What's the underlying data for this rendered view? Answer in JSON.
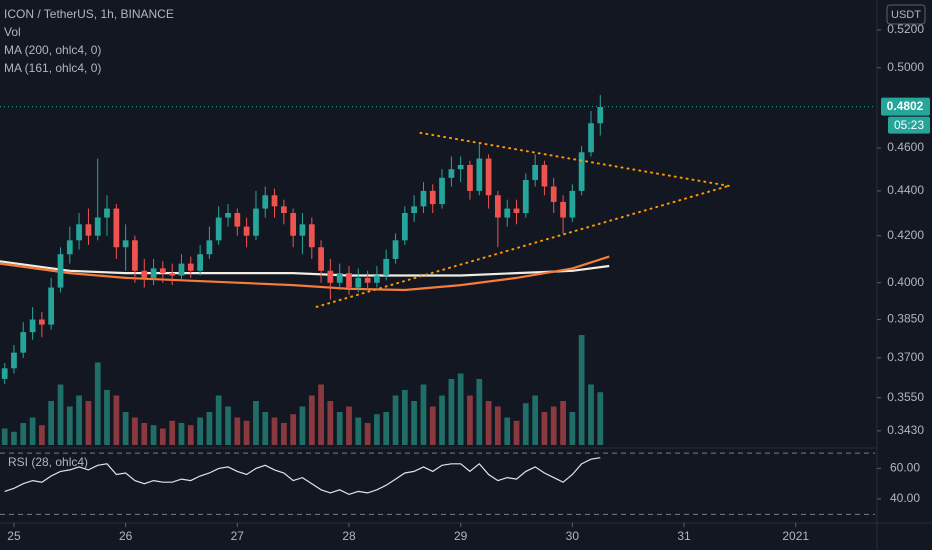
{
  "chart_data": {
    "type": "candlestick",
    "title": "ICON / TetherUS, 1h, BINANCE",
    "currency": "USDT",
    "log_scale": true,
    "grid": false,
    "up_color": "#26a69a",
    "down_color": "#ef5350",
    "xlim": [
      24.875,
      32.71
    ],
    "xticks": [
      25,
      26,
      27,
      28,
      29,
      30,
      31,
      {
        "value": 32,
        "label": "2021"
      }
    ],
    "ylim": [
      0.338,
      0.5364
    ],
    "yticks": [
      {
        "value": 0.52,
        "label": "0.5200"
      },
      {
        "value": 0.5,
        "label": "0.5000"
      },
      {
        "value": 0.46,
        "label": "0.4600"
      },
      {
        "value": 0.44,
        "label": "0.4400"
      },
      {
        "value": 0.42,
        "label": "0.4200"
      },
      {
        "value": 0.4,
        "label": "0.4000"
      },
      {
        "value": 0.385,
        "label": "0.3850"
      },
      {
        "value": 0.37,
        "label": "0.3700"
      },
      {
        "value": 0.355,
        "label": "0.3550"
      },
      {
        "value": 0.343,
        "label": "0.3430"
      }
    ],
    "last_price": {
      "value": 0.4802,
      "label": "0.4802"
    },
    "countdown": "05:23",
    "x": [
      24.917,
      25.0,
      25.083,
      25.167,
      25.25,
      25.333,
      25.417,
      25.5,
      25.583,
      25.667,
      25.75,
      25.833,
      25.917,
      26.0,
      26.083,
      26.167,
      26.25,
      26.333,
      26.417,
      26.5,
      26.583,
      26.667,
      26.75,
      26.833,
      26.917,
      27.0,
      27.083,
      27.167,
      27.25,
      27.333,
      27.417,
      27.5,
      27.583,
      27.667,
      27.75,
      27.833,
      27.917,
      28.0,
      28.083,
      28.167,
      28.25,
      28.333,
      28.417,
      28.5,
      28.583,
      28.667,
      28.75,
      28.833,
      28.917,
      29.0,
      29.083,
      29.167,
      29.25,
      29.333,
      29.417,
      29.5,
      29.583,
      29.667,
      29.75,
      29.833,
      29.917,
      30.0,
      30.083,
      30.167,
      30.25
    ],
    "open": [
      0.362,
      0.366,
      0.372,
      0.38,
      0.385,
      0.383,
      0.398,
      0.412,
      0.418,
      0.425,
      0.42,
      0.428,
      0.432,
      0.415,
      0.418,
      0.405,
      0.402,
      0.406,
      0.404,
      0.403,
      0.408,
      0.405,
      0.412,
      0.418,
      0.428,
      0.43,
      0.424,
      0.42,
      0.432,
      0.438,
      0.433,
      0.43,
      0.42,
      0.425,
      0.415,
      0.405,
      0.4,
      0.404,
      0.398,
      0.402,
      0.4,
      0.403,
      0.41,
      0.418,
      0.43,
      0.433,
      0.44,
      0.434,
      0.446,
      0.45,
      0.452,
      0.44,
      0.455,
      0.438,
      0.428,
      0.432,
      0.43,
      0.445,
      0.452,
      0.442,
      0.435,
      0.428,
      0.44,
      0.458,
      0.472
    ],
    "high": [
      0.368,
      0.375,
      0.384,
      0.39,
      0.388,
      0.402,
      0.415,
      0.424,
      0.43,
      0.432,
      0.455,
      0.438,
      0.434,
      0.425,
      0.42,
      0.41,
      0.41,
      0.409,
      0.408,
      0.412,
      0.411,
      0.416,
      0.424,
      0.433,
      0.434,
      0.432,
      0.428,
      0.44,
      0.442,
      0.441,
      0.436,
      0.432,
      0.43,
      0.428,
      0.418,
      0.41,
      0.408,
      0.407,
      0.406,
      0.405,
      0.407,
      0.414,
      0.421,
      0.433,
      0.438,
      0.444,
      0.443,
      0.45,
      0.456,
      0.456,
      0.454,
      0.462,
      0.457,
      0.44,
      0.436,
      0.436,
      0.448,
      0.457,
      0.454,
      0.446,
      0.438,
      0.443,
      0.461,
      0.478,
      0.486
    ],
    "low": [
      0.36,
      0.364,
      0.37,
      0.377,
      0.378,
      0.381,
      0.396,
      0.408,
      0.414,
      0.416,
      0.418,
      0.42,
      0.41,
      0.405,
      0.4,
      0.398,
      0.399,
      0.4,
      0.399,
      0.401,
      0.402,
      0.403,
      0.41,
      0.416,
      0.424,
      0.42,
      0.415,
      0.418,
      0.428,
      0.428,
      0.425,
      0.415,
      0.412,
      0.41,
      0.4,
      0.393,
      0.397,
      0.395,
      0.396,
      0.397,
      0.398,
      0.401,
      0.408,
      0.416,
      0.426,
      0.43,
      0.43,
      0.432,
      0.442,
      0.444,
      0.436,
      0.438,
      0.432,
      0.415,
      0.424,
      0.425,
      0.428,
      0.442,
      0.438,
      0.43,
      0.421,
      0.426,
      0.438,
      0.456,
      0.466
    ],
    "close": [
      0.366,
      0.372,
      0.38,
      0.385,
      0.383,
      0.398,
      0.412,
      0.418,
      0.425,
      0.42,
      0.428,
      0.432,
      0.415,
      0.418,
      0.405,
      0.402,
      0.406,
      0.404,
      0.403,
      0.408,
      0.405,
      0.412,
      0.418,
      0.428,
      0.43,
      0.424,
      0.42,
      0.432,
      0.438,
      0.433,
      0.43,
      0.42,
      0.425,
      0.415,
      0.405,
      0.4,
      0.404,
      0.398,
      0.402,
      0.4,
      0.403,
      0.41,
      0.418,
      0.43,
      0.433,
      0.44,
      0.434,
      0.446,
      0.45,
      0.452,
      0.44,
      0.455,
      0.438,
      0.428,
      0.432,
      0.43,
      0.445,
      0.452,
      0.442,
      0.435,
      0.428,
      0.44,
      0.458,
      0.472,
      0.48
    ],
    "volume": {
      "name": "Vol",
      "up_color": "#1f6e67",
      "down_color": "#8a3a3f",
      "values": [
        15,
        12,
        20,
        25,
        18,
        40,
        55,
        35,
        45,
        40,
        75,
        50,
        45,
        30,
        25,
        20,
        18,
        15,
        22,
        20,
        18,
        25,
        30,
        45,
        35,
        25,
        22,
        40,
        30,
        25,
        20,
        28,
        35,
        45,
        55,
        40,
        30,
        35,
        25,
        20,
        28,
        30,
        45,
        50,
        40,
        55,
        35,
        45,
        60,
        65,
        45,
        60,
        40,
        35,
        25,
        22,
        38,
        45,
        30,
        35,
        40,
        30,
        100,
        55,
        48
      ]
    },
    "series": [
      {
        "name": "MA (200, ohlc4, 0)",
        "color": "#f0ede4",
        "x": [
          24.875,
          25.5,
          26,
          26.5,
          27,
          27.5,
          28,
          28.5,
          29,
          29.5,
          30,
          30.33
        ],
        "values": [
          0.409,
          0.405,
          0.404,
          0.404,
          0.404,
          0.404,
          0.403,
          0.403,
          0.403,
          0.404,
          0.405,
          0.407
        ]
      },
      {
        "name": "MA (161, ohlc4, 0)",
        "color": "#f57c3a",
        "x": [
          24.875,
          25.5,
          26,
          26.5,
          27,
          27.5,
          28,
          28.5,
          29,
          29.5,
          30,
          30.33
        ],
        "values": [
          0.408,
          0.404,
          0.402,
          0.401,
          0.4,
          0.399,
          0.3975,
          0.397,
          0.399,
          0.402,
          0.406,
          0.411
        ]
      }
    ],
    "annotations": [
      {
        "color": "#ff9800",
        "x": [
          28.64,
          31.4
        ],
        "values": [
          0.4673,
          0.4423
        ]
      },
      {
        "color": "#ff9800",
        "x": [
          27.71,
          31.4
        ],
        "values": [
          0.3901,
          0.4423
        ]
      }
    ],
    "rsi": {
      "name": "RSI (28, ohlc4)",
      "color": "#e0e3eb",
      "ylim": [
        25,
        72
      ],
      "yticks": [
        {
          "value": 60,
          "label": "60.00"
        },
        {
          "value": 40,
          "label": "40.00"
        }
      ],
      "levels": [
        70,
        30
      ],
      "values": [
        45,
        47,
        50,
        52,
        51,
        55,
        58,
        59,
        61,
        59,
        62,
        63,
        56,
        57,
        52,
        50,
        52,
        51,
        51,
        53,
        52,
        55,
        57,
        60,
        61,
        58,
        56,
        60,
        62,
        59,
        57,
        52,
        54,
        50,
        46,
        44,
        46,
        43,
        45,
        44,
        46,
        49,
        53,
        57,
        58,
        61,
        58,
        62,
        63,
        63,
        58,
        63,
        56,
        52,
        54,
        53,
        58,
        61,
        57,
        54,
        51,
        56,
        63,
        66,
        67
      ]
    }
  }
}
